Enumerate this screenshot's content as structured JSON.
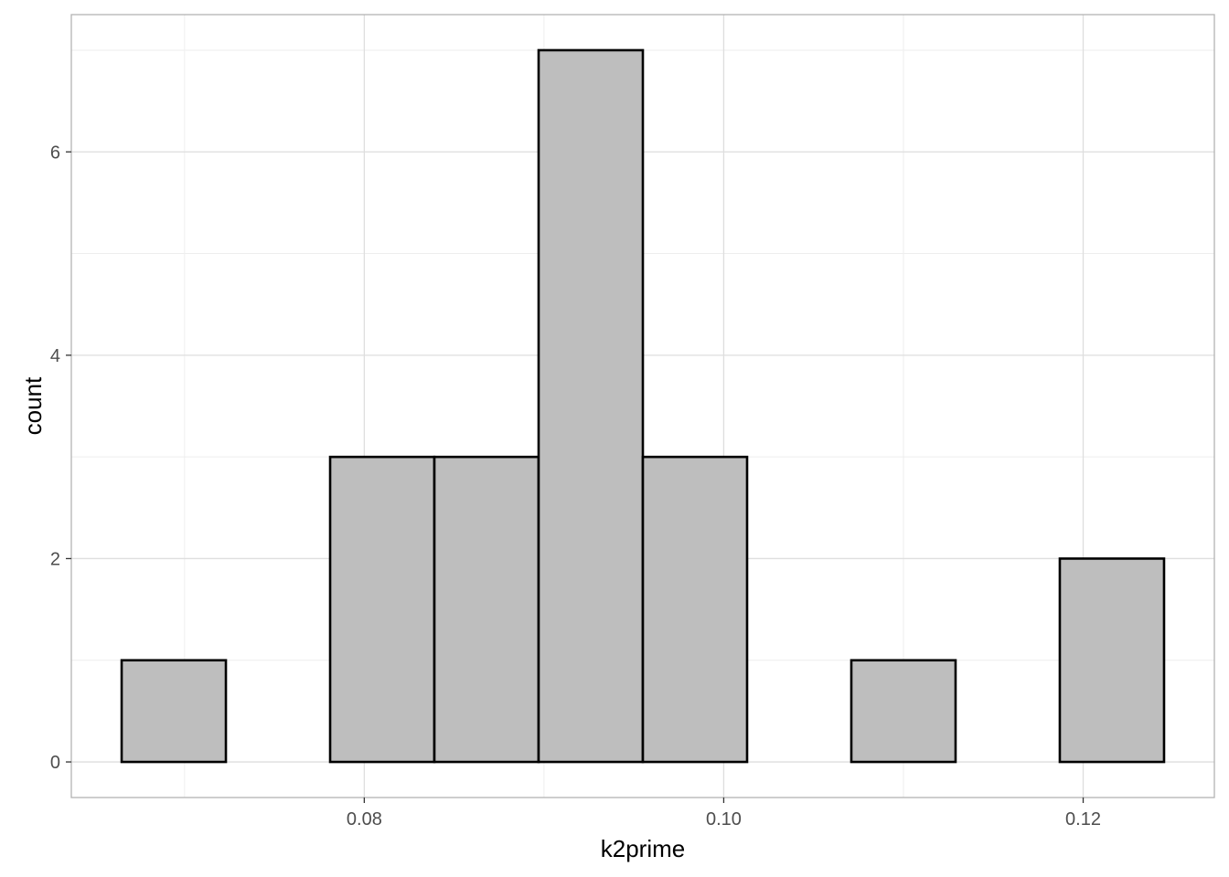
{
  "chart_data": {
    "type": "bar",
    "subtype": "histogram",
    "title": "",
    "xlabel": "k2prime",
    "ylabel": "count",
    "bin_width": 0.0058,
    "bins": [
      {
        "x0": 0.0665,
        "x1": 0.0723,
        "count": 1
      },
      {
        "x0": 0.0723,
        "x1": 0.0781,
        "count": 0
      },
      {
        "x0": 0.0781,
        "x1": 0.0839,
        "count": 3
      },
      {
        "x0": 0.0839,
        "x1": 0.0897,
        "count": 3
      },
      {
        "x0": 0.0897,
        "x1": 0.0955,
        "count": 7
      },
      {
        "x0": 0.0955,
        "x1": 0.1013,
        "count": 3
      },
      {
        "x0": 0.1013,
        "x1": 0.1071,
        "count": 0
      },
      {
        "x0": 0.1071,
        "x1": 0.1129,
        "count": 1
      },
      {
        "x0": 0.1129,
        "x1": 0.1187,
        "count": 0
      },
      {
        "x0": 0.1187,
        "x1": 0.1245,
        "count": 2
      }
    ],
    "xlim": [
      0.0637,
      0.1273
    ],
    "ylim": [
      -0.35,
      7.35
    ],
    "x_ticks": [
      0.08,
      0.1,
      0.12
    ],
    "x_tick_labels": [
      "0.08",
      "0.10",
      "0.12"
    ],
    "x_minor_ticks": [
      0.07,
      0.09,
      0.11
    ],
    "y_ticks": [
      0,
      2,
      4,
      6
    ],
    "y_tick_labels": [
      "0",
      "2",
      "4",
      "6"
    ],
    "y_minor_ticks": [
      1,
      3,
      5,
      7
    ],
    "grid": true,
    "colors": {
      "bar_fill": "#bebebe",
      "bar_stroke": "#000000",
      "grid_major": "#dedede",
      "grid_minor": "#eeeeee",
      "panel_border": "#b3b3b3",
      "tick_text": "#4d4d4d"
    }
  }
}
